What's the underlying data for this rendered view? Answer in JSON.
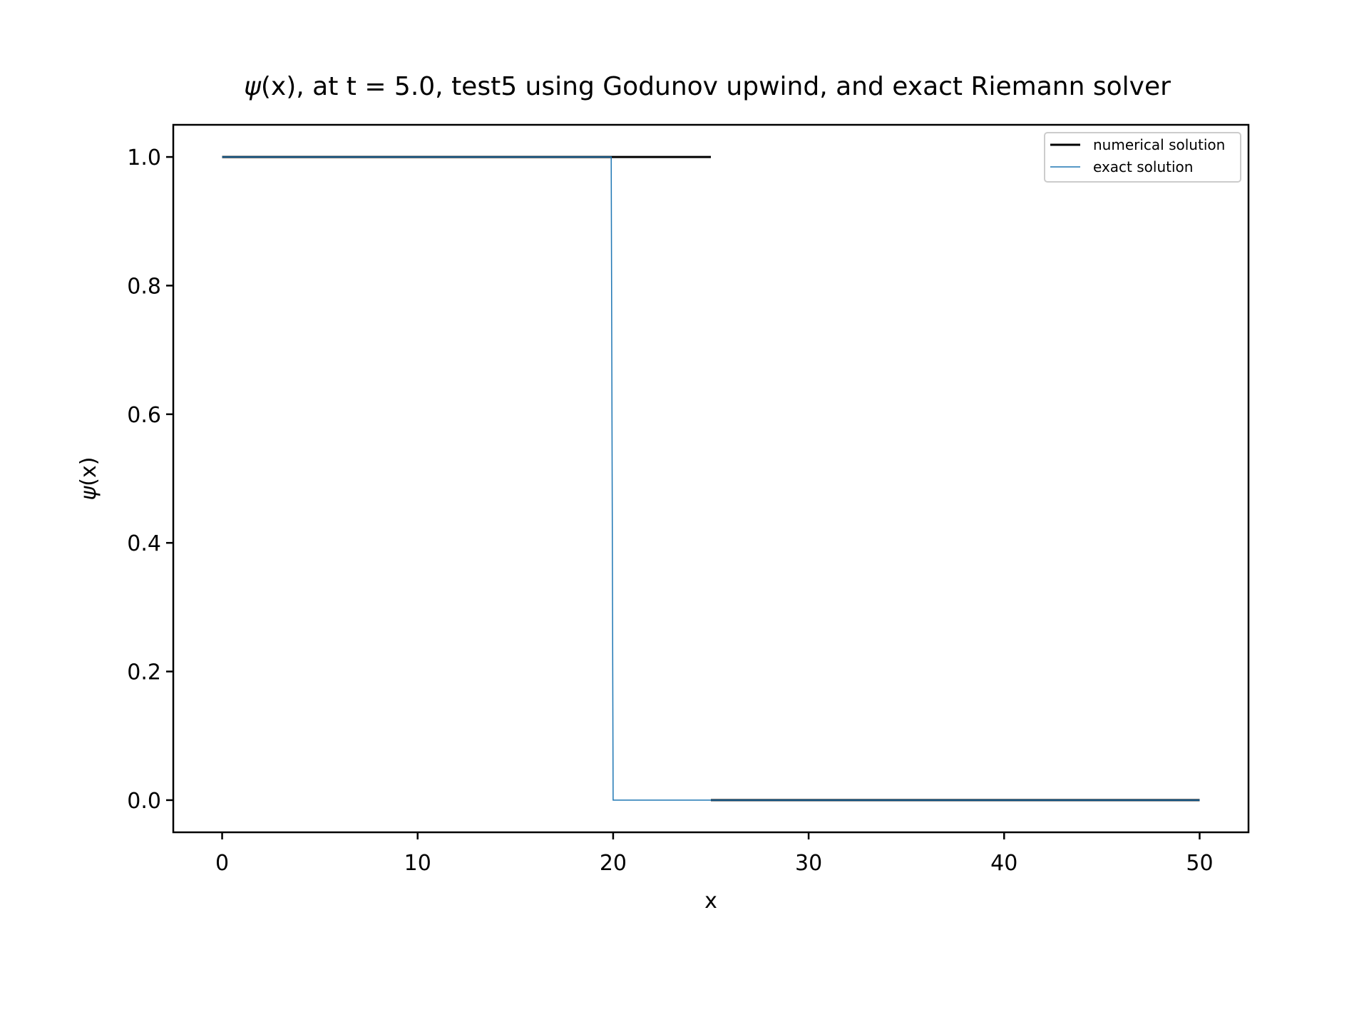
{
  "chart_data": {
    "type": "line",
    "title_symbol": "ψ",
    "title_rest": "(x), at t = 5.0, test5 using Godunov upwind, and exact Riemann solver",
    "xlabel": "x",
    "ylabel_symbol": "ψ",
    "ylabel_rest": "(x)",
    "xlim": [
      -2.5,
      52.5
    ],
    "ylim": [
      -0.05,
      1.05
    ],
    "xticks": [
      0,
      10,
      20,
      30,
      40,
      50
    ],
    "xtick_labels": [
      "0",
      "10",
      "20",
      "30",
      "40",
      "50"
    ],
    "yticks": [
      0.0,
      0.2,
      0.4,
      0.6,
      0.8,
      1.0
    ],
    "ytick_labels": [
      "0.0",
      "0.2",
      "0.4",
      "0.6",
      "0.8",
      "1.0"
    ],
    "grid": false,
    "legend_position": "top-right",
    "series": [
      {
        "name": "numerical solution",
        "color": "#000000",
        "segments": [
          {
            "x": [
              0,
              25
            ],
            "y": [
              1.0,
              1.0
            ]
          },
          {
            "x": [
              25,
              50
            ],
            "y": [
              0.0,
              0.0
            ]
          }
        ]
      },
      {
        "name": "exact solution",
        "color": "#1f77b4",
        "segments": [
          {
            "x": [
              0,
              19.9,
              20.0,
              50
            ],
            "y": [
              1.0,
              1.0,
              0.0,
              0.0
            ]
          }
        ]
      }
    ]
  }
}
